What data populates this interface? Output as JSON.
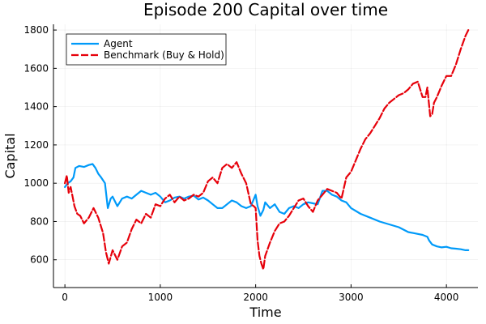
{
  "chart_data": {
    "type": "line",
    "title": "Episode 200 Capital over time",
    "xlabel": "Time",
    "ylabel": "Capital",
    "xlim": [
      -120,
      4330
    ],
    "ylim": [
      455,
      1830
    ],
    "x_ticks": [
      {
        "value": 0,
        "label": "0"
      },
      {
        "value": 1000,
        "label": "1000"
      },
      {
        "value": 2000,
        "label": "2000"
      },
      {
        "value": 3000,
        "label": "3000"
      },
      {
        "value": 4000,
        "label": "4000"
      }
    ],
    "y_ticks": [
      {
        "value": 600,
        "label": "600"
      },
      {
        "value": 800,
        "label": "800"
      },
      {
        "value": 1000,
        "label": "1000"
      },
      {
        "value": 1200,
        "label": "1200"
      },
      {
        "value": 1400,
        "label": "1400"
      },
      {
        "value": 1600,
        "label": "1600"
      },
      {
        "value": 1800,
        "label": "1800"
      }
    ],
    "grid": true,
    "legend_position": "top-left",
    "series": [
      {
        "name": "Agent",
        "color": "#009af9",
        "dash": "solid",
        "x": [
          0,
          30,
          60,
          90,
          110,
          150,
          200,
          250,
          290,
          320,
          350,
          380,
          420,
          450,
          480,
          500,
          550,
          600,
          650,
          700,
          750,
          800,
          850,
          900,
          950,
          1000,
          1050,
          1100,
          1150,
          1200,
          1250,
          1300,
          1350,
          1400,
          1450,
          1500,
          1550,
          1600,
          1650,
          1700,
          1750,
          1800,
          1850,
          1900,
          1950,
          2000,
          2020,
          2050,
          2080,
          2100,
          2150,
          2200,
          2250,
          2300,
          2350,
          2400,
          2450,
          2500,
          2550,
          2600,
          2650,
          2700,
          2750,
          2800,
          2850,
          2900,
          2950,
          3000,
          3100,
          3200,
          3300,
          3400,
          3500,
          3600,
          3700,
          3750,
          3800,
          3820,
          3850,
          3900,
          3950,
          4000,
          4050,
          4100,
          4150,
          4200,
          4230
        ],
        "y": [
          980,
          1000,
          1010,
          1030,
          1080,
          1090,
          1085,
          1095,
          1100,
          1080,
          1050,
          1030,
          1000,
          870,
          920,
          930,
          880,
          920,
          930,
          920,
          940,
          960,
          950,
          940,
          950,
          930,
          900,
          910,
          925,
          930,
          920,
          930,
          935,
          915,
          925,
          910,
          890,
          870,
          870,
          890,
          910,
          900,
          880,
          870,
          880,
          940,
          880,
          830,
          860,
          900,
          870,
          890,
          850,
          840,
          870,
          880,
          870,
          890,
          900,
          895,
          890,
          960,
          960,
          940,
          930,
          910,
          900,
          870,
          840,
          820,
          800,
          785,
          770,
          745,
          735,
          730,
          720,
          700,
          680,
          670,
          665,
          668,
          660,
          658,
          655,
          650,
          650
        ]
      },
      {
        "name": "Benchmark (Buy & Hold)",
        "color": "#e6000a",
        "dash": "dashed",
        "x": [
          0,
          20,
          40,
          60,
          80,
          100,
          130,
          160,
          200,
          250,
          300,
          350,
          400,
          430,
          460,
          500,
          550,
          600,
          650,
          700,
          750,
          800,
          850,
          900,
          950,
          1000,
          1050,
          1100,
          1150,
          1200,
          1250,
          1300,
          1350,
          1400,
          1450,
          1500,
          1550,
          1600,
          1650,
          1700,
          1750,
          1800,
          1850,
          1900,
          1950,
          1980,
          2000,
          2020,
          2040,
          2060,
          2080,
          2100,
          2150,
          2200,
          2250,
          2300,
          2350,
          2400,
          2450,
          2500,
          2550,
          2600,
          2650,
          2700,
          2750,
          2800,
          2850,
          2900,
          2950,
          3000,
          3050,
          3100,
          3150,
          3200,
          3250,
          3300,
          3350,
          3400,
          3450,
          3500,
          3550,
          3600,
          3650,
          3700,
          3750,
          3780,
          3800,
          3830,
          3850,
          3870,
          3900,
          3950,
          4000,
          4050,
          4100,
          4150,
          4200,
          4230
        ],
        "y": [
          1000,
          1040,
          950,
          980,
          930,
          880,
          840,
          830,
          790,
          820,
          870,
          820,
          740,
          640,
          580,
          650,
          600,
          670,
          690,
          760,
          810,
          790,
          840,
          820,
          890,
          880,
          920,
          940,
          900,
          930,
          910,
          920,
          940,
          930,
          950,
          1010,
          1030,
          1000,
          1080,
          1100,
          1080,
          1110,
          1050,
          1000,
          890,
          880,
          870,
          700,
          620,
          580,
          550,
          620,
          690,
          750,
          790,
          800,
          830,
          870,
          910,
          920,
          880,
          850,
          910,
          940,
          970,
          960,
          950,
          920,
          1030,
          1060,
          1120,
          1180,
          1230,
          1260,
          1300,
          1340,
          1390,
          1420,
          1440,
          1460,
          1470,
          1490,
          1520,
          1530,
          1450,
          1450,
          1500,
          1350,
          1360,
          1420,
          1450,
          1510,
          1560,
          1560,
          1620,
          1700,
          1770,
          1800
        ]
      }
    ]
  }
}
